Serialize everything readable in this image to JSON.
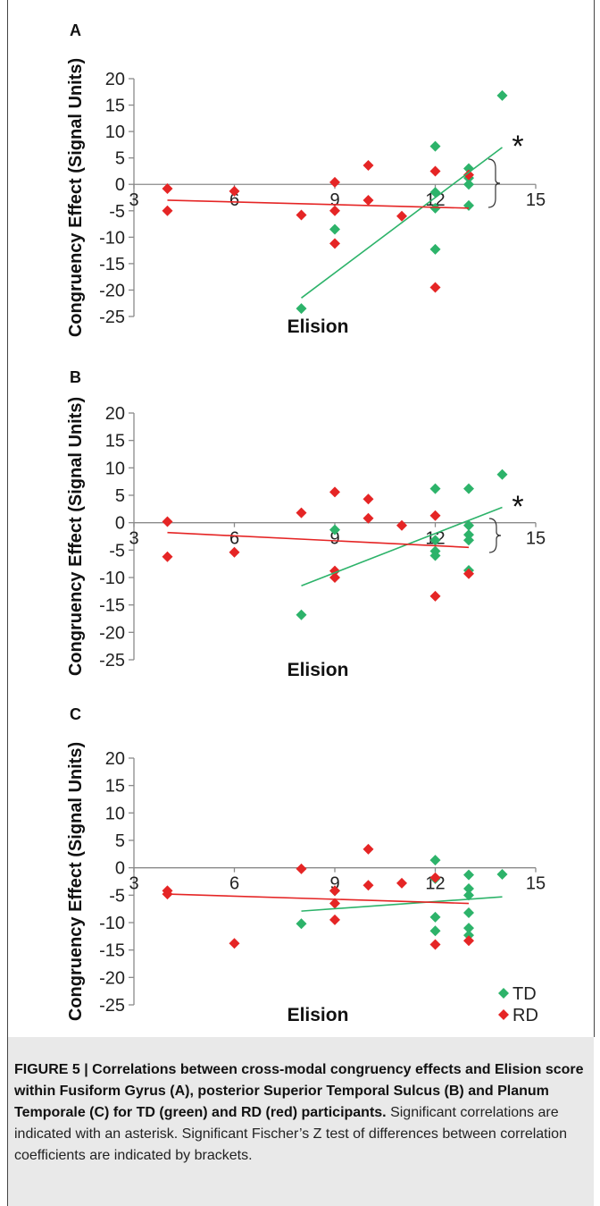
{
  "colors": {
    "TD": "#2db36a",
    "RD": "#e52525",
    "axis": "#8a8a8a"
  },
  "chart_data": [
    {
      "type": "scatter",
      "panel_label": "A",
      "ylabel": "Congruency Effect (Signal Units)",
      "xlabel": "Elision",
      "xlim": [
        3,
        15
      ],
      "ylim": [
        -25,
        20
      ],
      "x_ticks": [
        "3",
        "6",
        "9",
        "12",
        "15"
      ],
      "y_ticks": [
        "20",
        "15",
        "10",
        "5",
        "0",
        "-5",
        "-10",
        "-15",
        "-20",
        "-25"
      ],
      "significance_marker": "*",
      "series": [
        {
          "name": "TD",
          "color": "#2db36a",
          "points": [
            [
              8,
              -23.5
            ],
            [
              9,
              -8.5
            ],
            [
              12,
              7.2
            ],
            [
              12,
              -1.5
            ],
            [
              12,
              -4.5
            ],
            [
              12,
              -12.3
            ],
            [
              13,
              3.0
            ],
            [
              13,
              1.2
            ],
            [
              13,
              0
            ],
            [
              13,
              -4.0
            ],
            [
              14,
              16.8
            ]
          ],
          "trend": [
            [
              8,
              -21.5
            ],
            [
              14,
              7.0
            ]
          ]
        },
        {
          "name": "RD",
          "color": "#e52525",
          "points": [
            [
              4,
              -0.8
            ],
            [
              4,
              -5.0
            ],
            [
              6,
              -1.3
            ],
            [
              8,
              -5.8
            ],
            [
              9,
              0.4
            ],
            [
              9,
              -5.0
            ],
            [
              9,
              -11.2
            ],
            [
              10,
              3.6
            ],
            [
              10,
              -3.0
            ],
            [
              11,
              -6.0
            ],
            [
              12,
              2.5
            ],
            [
              12,
              -19.5
            ],
            [
              13,
              1.8
            ]
          ],
          "trend": [
            [
              4,
              -3.0
            ],
            [
              13,
              -4.5
            ]
          ]
        }
      ]
    },
    {
      "type": "scatter",
      "panel_label": "B",
      "ylabel": "Congruency Effect (Signal Units)",
      "xlabel": "Elision",
      "xlim": [
        3,
        15
      ],
      "ylim": [
        -25,
        20
      ],
      "x_ticks": [
        "3",
        "6",
        "9",
        "12",
        "15"
      ],
      "y_ticks": [
        "20",
        "15",
        "10",
        "5",
        "0",
        "-5",
        "-10",
        "-15",
        "-20",
        "-25"
      ],
      "significance_marker": "*",
      "series": [
        {
          "name": "TD",
          "color": "#2db36a",
          "points": [
            [
              8,
              -16.8
            ],
            [
              9,
              -1.3
            ],
            [
              12,
              6.2
            ],
            [
              12,
              -3.2
            ],
            [
              12,
              -5.2
            ],
            [
              12,
              -6.0
            ],
            [
              13,
              6.2
            ],
            [
              13,
              -0.5
            ],
            [
              13,
              -2.2
            ],
            [
              13,
              -3.2
            ],
            [
              13,
              -8.7
            ],
            [
              14,
              8.8
            ]
          ],
          "trend": [
            [
              8,
              -11.5
            ],
            [
              14,
              2.8
            ]
          ]
        },
        {
          "name": "RD",
          "color": "#e52525",
          "points": [
            [
              4,
              0.2
            ],
            [
              4,
              -6.2
            ],
            [
              6,
              -5.4
            ],
            [
              8,
              1.8
            ],
            [
              9,
              5.6
            ],
            [
              9,
              -8.8
            ],
            [
              9,
              -10.0
            ],
            [
              10,
              4.3
            ],
            [
              10,
              0.8
            ],
            [
              11,
              -0.5
            ],
            [
              12,
              1.3
            ],
            [
              12,
              -13.4
            ],
            [
              13,
              -9.3
            ]
          ],
          "trend": [
            [
              4,
              -1.8
            ],
            [
              13,
              -4.5
            ]
          ]
        }
      ]
    },
    {
      "type": "scatter",
      "panel_label": "C",
      "ylabel": "Congruency Effect (Signal Units)",
      "xlabel": "Elision",
      "xlim": [
        3,
        15
      ],
      "ylim": [
        -25,
        20
      ],
      "x_ticks": [
        "3",
        "6",
        "9",
        "12",
        "15"
      ],
      "y_ticks": [
        "20",
        "15",
        "10",
        "5",
        "0",
        "-5",
        "-10",
        "-15",
        "-20",
        "-25"
      ],
      "legend": [
        "TD",
        "RD"
      ],
      "series": [
        {
          "name": "TD",
          "color": "#2db36a",
          "points": [
            [
              8,
              -10.2
            ],
            [
              9,
              -4.2
            ],
            [
              12,
              1.4
            ],
            [
              12,
              -2.0
            ],
            [
              12,
              -9.0
            ],
            [
              12,
              -11.5
            ],
            [
              13,
              -1.3
            ],
            [
              13,
              -3.8
            ],
            [
              13,
              -5.0
            ],
            [
              13,
              -8.2
            ],
            [
              13,
              -11.0
            ],
            [
              13,
              -12.3
            ],
            [
              14,
              -1.2
            ]
          ],
          "trend": [
            [
              8,
              -7.9
            ],
            [
              14,
              -5.3
            ]
          ]
        },
        {
          "name": "RD",
          "color": "#e52525",
          "points": [
            [
              4,
              -4.2
            ],
            [
              4,
              -4.8
            ],
            [
              6,
              -13.8
            ],
            [
              8,
              -0.2
            ],
            [
              9,
              -4.2
            ],
            [
              9,
              -6.5
            ],
            [
              9,
              -9.5
            ],
            [
              10,
              3.4
            ],
            [
              10,
              -3.2
            ],
            [
              11,
              -2.8
            ],
            [
              12,
              -1.8
            ],
            [
              12,
              -14.0
            ],
            [
              13,
              -13.3
            ]
          ],
          "trend": [
            [
              4,
              -4.8
            ],
            [
              13,
              -6.5
            ]
          ]
        }
      ]
    }
  ],
  "caption": {
    "bold": "FIGURE 5 | Correlations between cross-modal congruency effects and Elision score within Fusiform Gyrus (A), posterior Superior Temporal Sulcus (B) and Planum Temporale (C) for TD (green) and RD (red) participants.",
    "normal": " Significant correlations are indicated with an asterisk. Significant Fischer’s Z test of differences between correlation coefficients are indicated by brackets."
  }
}
